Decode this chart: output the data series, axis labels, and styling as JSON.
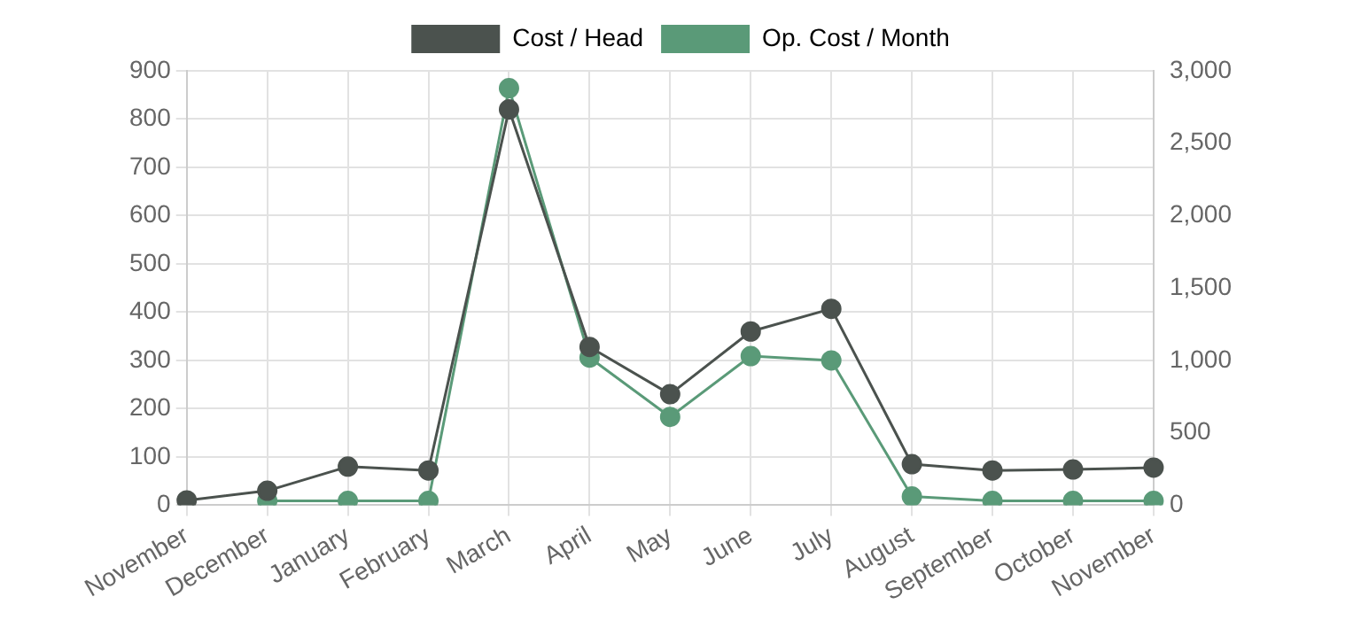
{
  "chart_data": {
    "type": "line",
    "categories": [
      "November",
      "December",
      "January",
      "February",
      "March",
      "April",
      "May",
      "June",
      "July",
      "August",
      "September",
      "October",
      "November"
    ],
    "series": [
      {
        "name": "Cost / Head",
        "color": "#4b524e",
        "values": [
          10,
          30,
          80,
          72,
          820,
          328,
          230,
          360,
          407,
          85,
          72,
          74,
          78
        ]
      },
      {
        "name": "Op. Cost / Month",
        "color": "#5a9a78",
        "axis": "y2",
        "values": [
          null,
          30,
          30,
          30,
          2880,
          1020,
          610,
          1030,
          1000,
          60,
          30,
          30,
          30
        ]
      }
    ],
    "ylim": [
      0,
      900
    ],
    "yticks": [
      0,
      100,
      200,
      300,
      400,
      500,
      600,
      700,
      800,
      900
    ],
    "y2lim": [
      0,
      3000
    ],
    "y2ticks": [
      0,
      {
        "value": 500,
        "label": "500"
      },
      {
        "value": 1000,
        "label": "1,000"
      },
      {
        "value": 1500,
        "label": "1,500"
      },
      {
        "value": 2000,
        "label": "2,000"
      },
      {
        "value": 2500,
        "label": "2,500"
      },
      {
        "value": 3000,
        "label": "3,000"
      }
    ],
    "grid": true,
    "legend": "top",
    "marker": "circle",
    "line_style": "solid"
  }
}
